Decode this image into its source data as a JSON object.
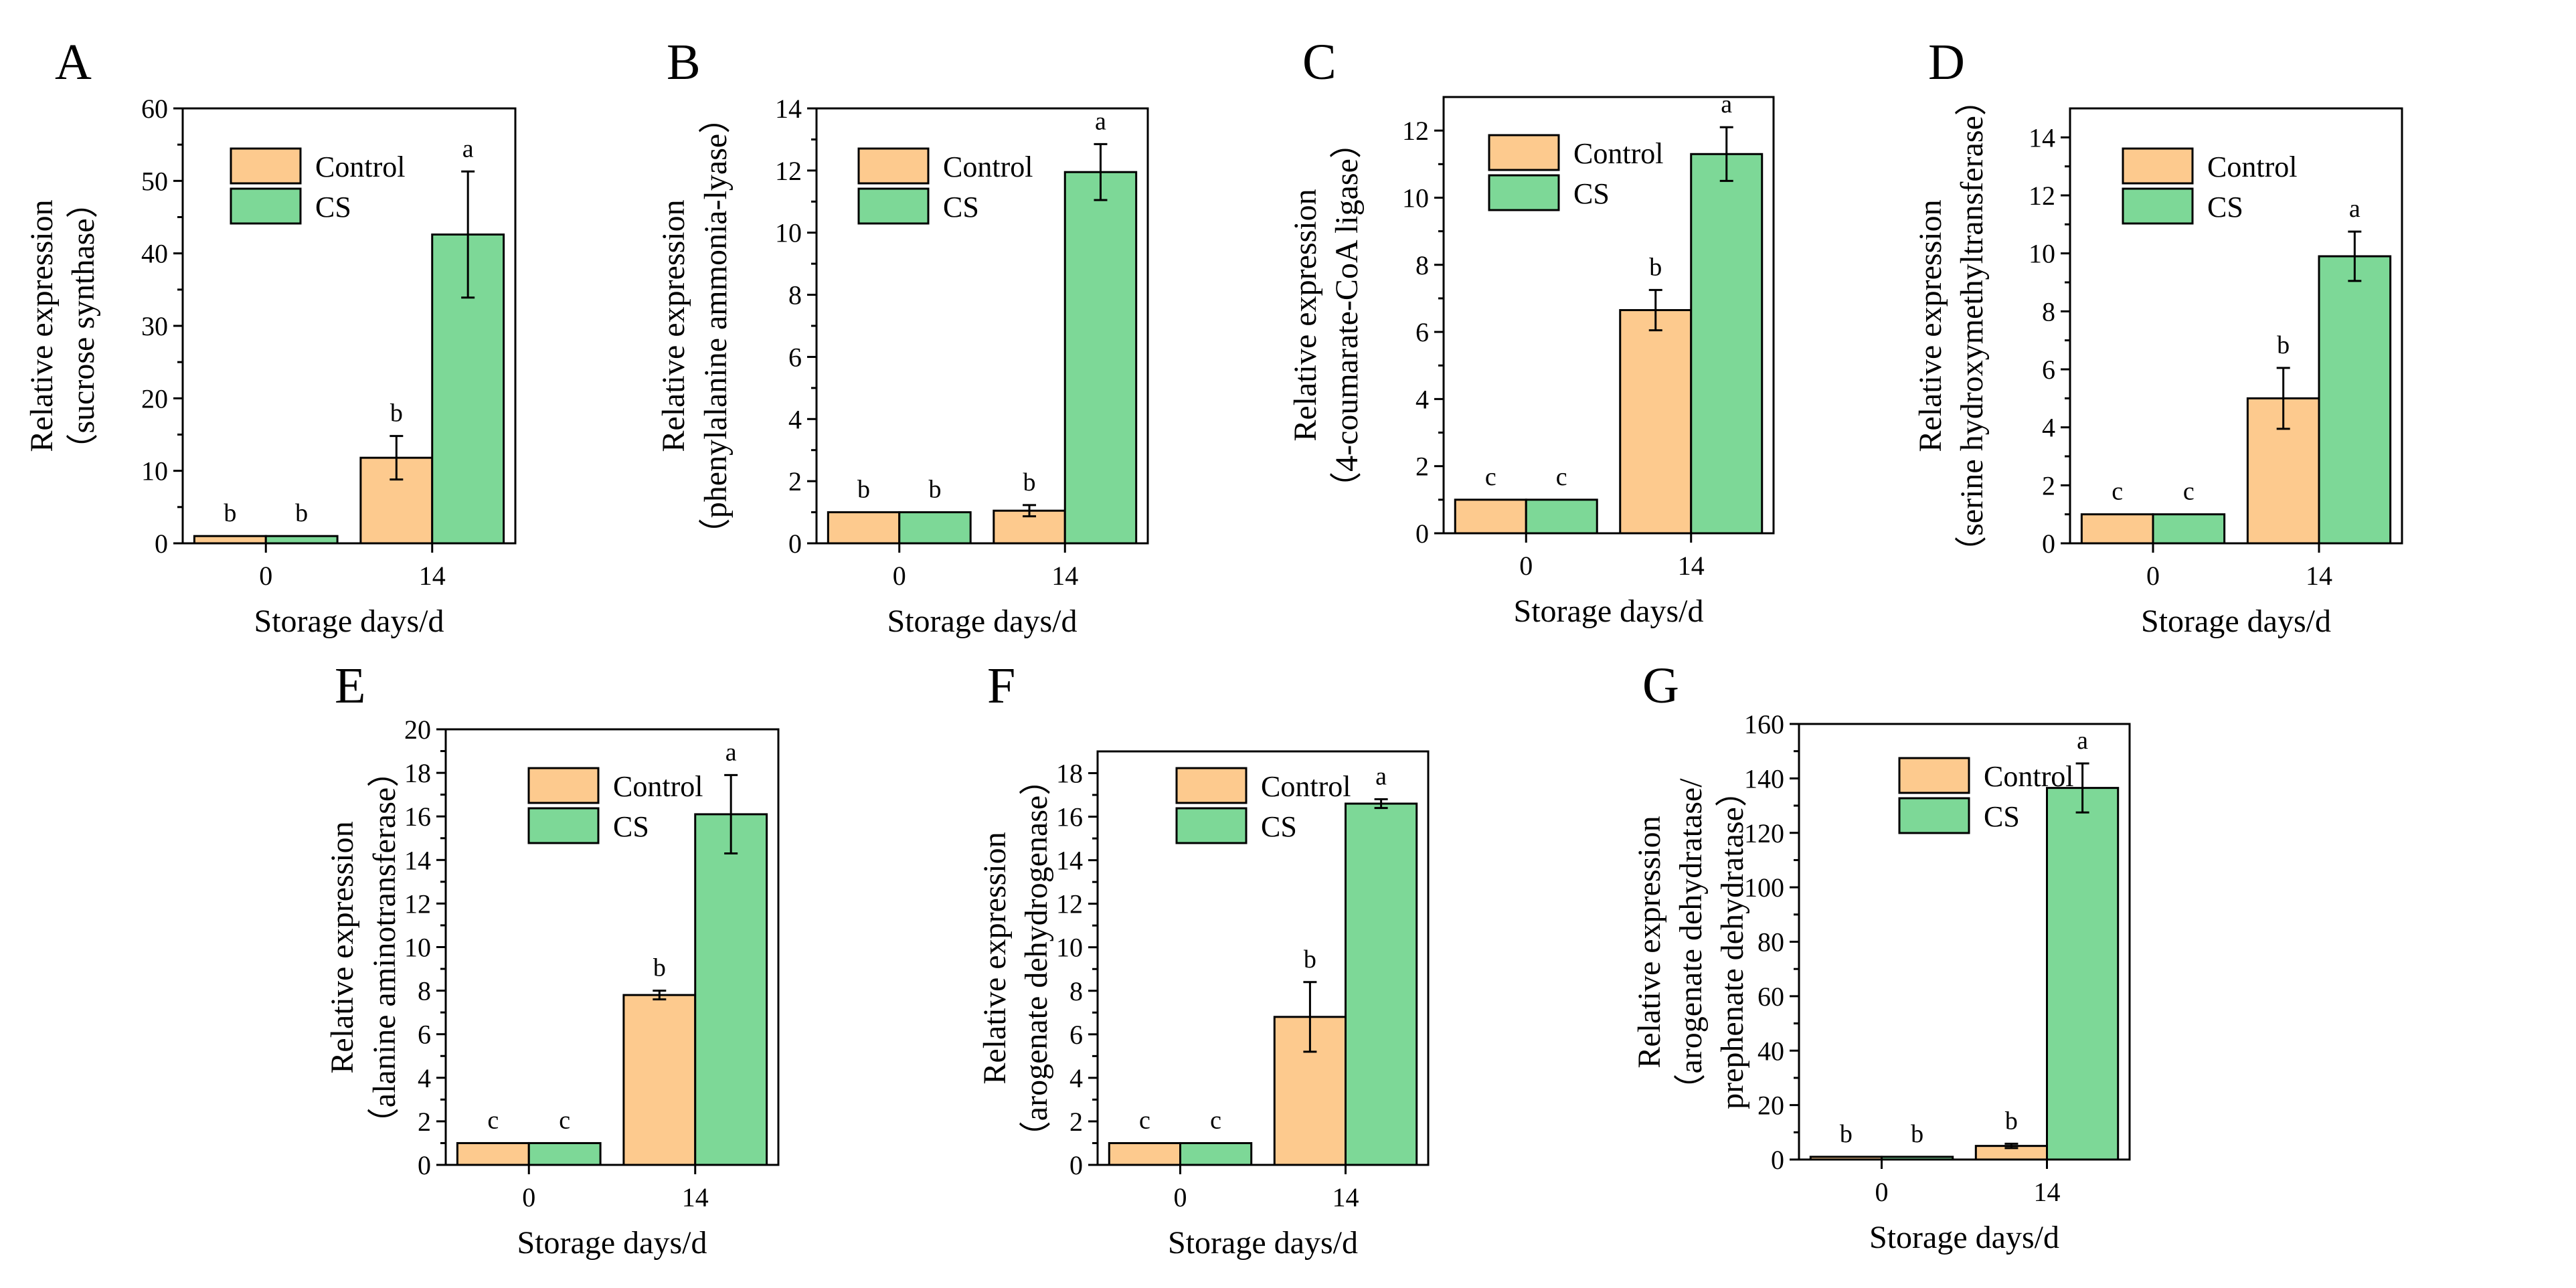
{
  "colors": {
    "control": "#FDCA8E",
    "cs": "#7DD897",
    "axis": "#000000"
  },
  "chart_data": [
    {
      "type": "bar",
      "panel": "A",
      "ylabel_lines": [
        "Relative expression",
        "（sucrose synthase）"
      ],
      "xlabel": "Storage days/d",
      "categories": [
        "0",
        "14"
      ],
      "series": [
        {
          "name": "Control",
          "values": [
            1.0,
            11.8
          ],
          "errors": [
            0,
            3.0
          ],
          "letters": [
            "b",
            "b"
          ]
        },
        {
          "name": "CS",
          "values": [
            1.0,
            42.6
          ],
          "errors": [
            0,
            8.7
          ],
          "letters": [
            "b",
            "a"
          ]
        }
      ],
      "ylim": [
        0,
        60
      ],
      "yticks": [
        "0",
        "10",
        "20",
        "30",
        "40",
        "50",
        "60"
      ],
      "legend": [
        "Control",
        "CS"
      ]
    },
    {
      "type": "bar",
      "panel": "B",
      "ylabel_lines": [
        "Relative expression",
        "（phenylalanine ammonia-lyase）"
      ],
      "xlabel": "Storage days/d",
      "categories": [
        "0",
        "14"
      ],
      "series": [
        {
          "name": "Control",
          "values": [
            1.0,
            1.05
          ],
          "errors": [
            0,
            0.18
          ],
          "letters": [
            "b",
            "b"
          ]
        },
        {
          "name": "CS",
          "values": [
            1.0,
            11.95
          ],
          "errors": [
            0,
            0.9
          ],
          "letters": [
            "b",
            "a"
          ]
        }
      ],
      "ylim": [
        0,
        14
      ],
      "yticks": [
        "0",
        "2",
        "4",
        "6",
        "8",
        "10",
        "12",
        "14"
      ],
      "legend": [
        "Control",
        "CS"
      ]
    },
    {
      "type": "bar",
      "panel": "C",
      "ylabel_lines": [
        "Relative expression",
        "（4-coumarate-CoA ligase）"
      ],
      "xlabel": "Storage days/d",
      "categories": [
        "0",
        "14"
      ],
      "series": [
        {
          "name": "Control",
          "values": [
            1.0,
            6.65
          ],
          "errors": [
            0,
            0.6
          ],
          "letters": [
            "c",
            "b"
          ]
        },
        {
          "name": "CS",
          "values": [
            1.0,
            11.3
          ],
          "errors": [
            0,
            0.8
          ],
          "letters": [
            "c",
            "a"
          ]
        }
      ],
      "ylim": [
        0,
        13
      ],
      "yticks": [
        "0",
        "2",
        "4",
        "6",
        "8",
        "10",
        "12"
      ],
      "legend": [
        "Control",
        "CS"
      ]
    },
    {
      "type": "bar",
      "panel": "D",
      "ylabel_lines": [
        "Relative expression",
        "（serine hydroxymethyltransferase）"
      ],
      "xlabel": "Storage days/d",
      "categories": [
        "0",
        "14"
      ],
      "series": [
        {
          "name": "Control",
          "values": [
            1.0,
            5.0
          ],
          "errors": [
            0,
            1.05
          ],
          "letters": [
            "c",
            "b"
          ]
        },
        {
          "name": "CS",
          "values": [
            1.0,
            9.9
          ],
          "errors": [
            0,
            0.85
          ],
          "letters": [
            "c",
            "a"
          ]
        }
      ],
      "ylim": [
        0,
        15
      ],
      "yticks": [
        "0",
        "2",
        "4",
        "6",
        "8",
        "10",
        "12",
        "14"
      ],
      "legend": [
        "Control",
        "CS"
      ]
    },
    {
      "type": "bar",
      "panel": "E",
      "ylabel_lines": [
        "Relative expression",
        "（alanine aminotransferase）"
      ],
      "xlabel": "Storage days/d",
      "categories": [
        "0",
        "14"
      ],
      "series": [
        {
          "name": "Control",
          "values": [
            1.0,
            7.8
          ],
          "errors": [
            0,
            0.2
          ],
          "letters": [
            "c",
            "b"
          ]
        },
        {
          "name": "CS",
          "values": [
            1.0,
            16.1
          ],
          "errors": [
            0,
            1.8
          ],
          "letters": [
            "c",
            "a"
          ]
        }
      ],
      "ylim": [
        0,
        20
      ],
      "yticks": [
        "0",
        "2",
        "4",
        "6",
        "8",
        "10",
        "12",
        "14",
        "16",
        "18",
        "20"
      ],
      "legend": [
        "Control",
        "CS"
      ]
    },
    {
      "type": "bar",
      "panel": "F",
      "ylabel_lines": [
        "Relative expression",
        "（arogenate dehydrogenase）"
      ],
      "xlabel": "Storage days/d",
      "categories": [
        "0",
        "14"
      ],
      "series": [
        {
          "name": "Control",
          "values": [
            1.0,
            6.8
          ],
          "errors": [
            0,
            1.6
          ],
          "letters": [
            "c",
            "b"
          ]
        },
        {
          "name": "CS",
          "values": [
            1.0,
            16.6
          ],
          "errors": [
            0,
            0.2
          ],
          "letters": [
            "c",
            "a"
          ]
        }
      ],
      "ylim": [
        0,
        19
      ],
      "yticks": [
        "0",
        "2",
        "4",
        "6",
        "8",
        "10",
        "12",
        "14",
        "16",
        "18"
      ],
      "legend": [
        "Control",
        "CS"
      ]
    },
    {
      "type": "bar",
      "panel": "G",
      "ylabel_lines": [
        "Relative expression",
        "（arogenate dehydratase/",
        "prephenate dehydratase）"
      ],
      "xlabel": "Storage days/d",
      "categories": [
        "0",
        "14"
      ],
      "series": [
        {
          "name": "Control",
          "values": [
            1.0,
            5.0
          ],
          "errors": [
            0,
            0.8
          ],
          "letters": [
            "b",
            "b"
          ]
        },
        {
          "name": "CS",
          "values": [
            1.0,
            136.5
          ],
          "errors": [
            0,
            9.0
          ],
          "letters": [
            "b",
            "a"
          ]
        }
      ],
      "ylim": [
        0,
        160
      ],
      "yticks": [
        "0",
        "20",
        "40",
        "60",
        "80",
        "100",
        "120",
        "140",
        "160"
      ],
      "legend": [
        "Control",
        "CS"
      ]
    }
  ]
}
